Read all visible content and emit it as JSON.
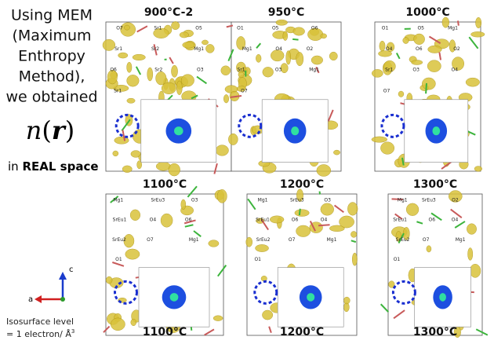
{
  "intro": {
    "lines": [
      "Using MEM",
      "(Maximum",
      "Enthropy",
      "Method),",
      "we obtained"
    ],
    "formula": {
      "n": "n",
      "open": "(",
      "r": "r",
      "close": ")"
    },
    "space_prefix": "in",
    "space_bold": "REAL space"
  },
  "panels": [
    {
      "label": "900°C-2",
      "atoms": [
        "O7",
        "Sr1",
        "O5",
        "Sr1",
        "Sr2",
        "Mg1",
        "O6",
        "Sr2",
        "O3",
        "Sr1"
      ]
    },
    {
      "label": "950°C",
      "atoms": [
        "O1",
        "O5",
        "O6",
        "Mg1",
        "O4",
        "O2",
        "Sr1",
        "O3",
        "Mg1",
        "O7"
      ]
    },
    {
      "label": "1000°C",
      "atoms": [
        "O1",
        "O5",
        "Mg1",
        "O4",
        "O6",
        "O2",
        "Sr1",
        "O3",
        "O4",
        "O7"
      ]
    },
    {
      "label": "1100°C",
      "atoms": [
        "Mg1",
        "SrEu3",
        "O3",
        "SrEu1",
        "O4",
        "O6",
        "SrEu2",
        "O7",
        "Mg1",
        "O1"
      ]
    },
    {
      "label": "1200°C",
      "atoms": [
        "Mg1",
        "SrEu3",
        "O3",
        "SrEu1",
        "O6",
        "O4",
        "SrEu2",
        "O7",
        "Mg1",
        "O1"
      ]
    },
    {
      "label": "1300°C",
      "atoms": [
        "Mg1",
        "SrEu3",
        "O2",
        "SrEu1",
        "O6",
        "O4",
        "SrEu2",
        "O7",
        "Mg1",
        "O1"
      ]
    }
  ],
  "bottom_labels": [
    "1100°C",
    "1200°C",
    "1300°C"
  ],
  "axes": {
    "c": "c",
    "a": "a"
  },
  "isosurface": {
    "line1": "Isosurface level",
    "line2": "= 1 electron/ Å",
    "exponent": "3"
  }
}
